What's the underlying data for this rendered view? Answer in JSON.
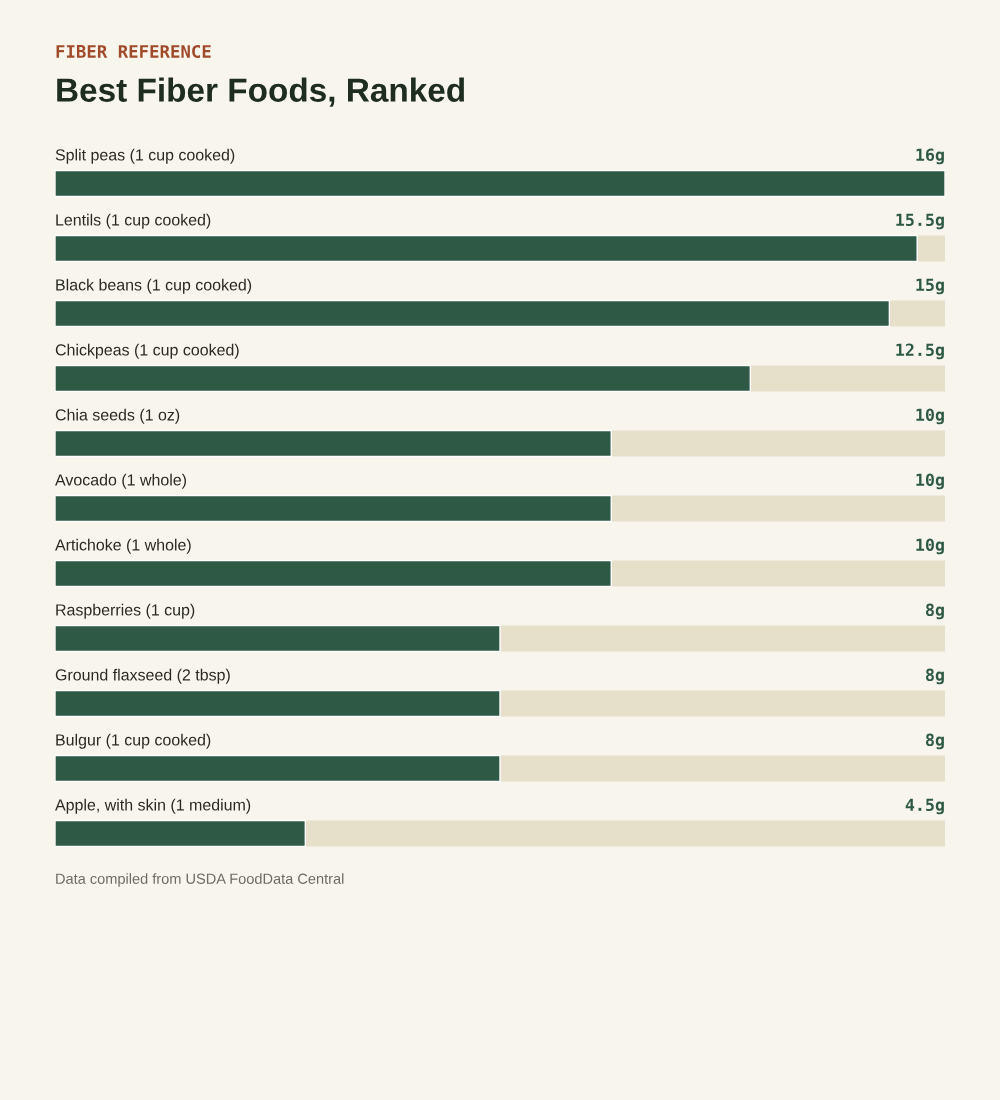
{
  "chart_data": {
    "type": "bar",
    "orientation": "horizontal",
    "subtitle": "FIBER REFERENCE",
    "title": "Best Fiber Foods, Ranked",
    "categories": [
      "Split peas (1 cup cooked)",
      "Lentils (1 cup cooked)",
      "Black beans (1 cup cooked)",
      "Chickpeas (1 cup cooked)",
      "Chia seeds (1 oz)",
      "Avocado (1 whole)",
      "Artichoke (1 whole)",
      "Raspberries (1 cup)",
      "Ground flaxseed (2 tbsp)",
      "Bulgur (1 cup cooked)",
      "Apple, with skin (1 medium)"
    ],
    "values": [
      16,
      15.5,
      15,
      12.5,
      10,
      10,
      10,
      8,
      8,
      8,
      4.5
    ],
    "value_labels": [
      "16g",
      "15.5g",
      "15g",
      "12.5g",
      "10g",
      "10g",
      "10g",
      "8g",
      "8g",
      "8g",
      "4.5g"
    ],
    "color": "#2e5944",
    "xlim": [
      0,
      16
    ],
    "tick_labels": "y",
    "annotations": [
      "Data compiled from USDA FoodData Central"
    ]
  }
}
